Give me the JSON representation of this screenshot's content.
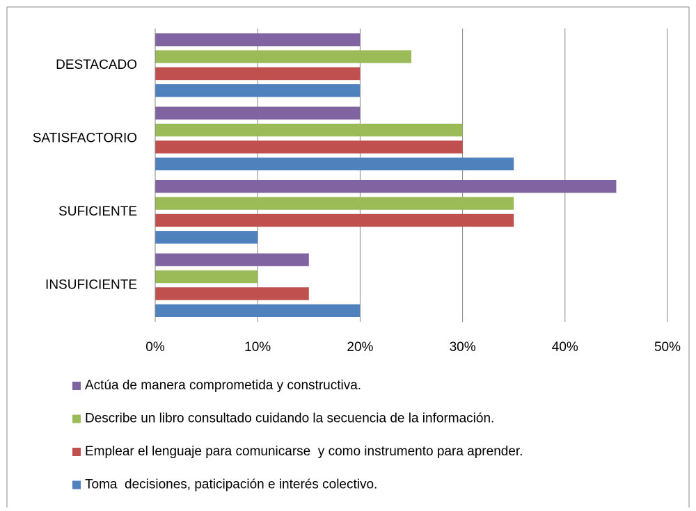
{
  "chart_data": {
    "type": "bar",
    "orientation": "horizontal",
    "categories": [
      "INSUFICIENTE",
      "SUFICIENTE",
      "SATISFACTORIO",
      "DESTACADO"
    ],
    "series": [
      {
        "name": "Toma  decisiones, paticipación e interés colectivo.",
        "color": "#4f81bd",
        "values": [
          20,
          10,
          35,
          20
        ]
      },
      {
        "name": "Emplear el lenguaje para comunicarse  y como instrumento para aprender.",
        "color": "#c0504d",
        "values": [
          15,
          35,
          30,
          20
        ]
      },
      {
        "name": "Describe un libro consultado cuidando la secuencia de la información.",
        "color": "#9bbb59",
        "values": [
          10,
          35,
          30,
          25
        ]
      },
      {
        "name": "Actúa de manera comprometida y constructiva.",
        "color": "#8064a2",
        "values": [
          15,
          45,
          20,
          20
        ]
      }
    ],
    "xlim": [
      0,
      50
    ],
    "xticks": [
      {
        "value": 0,
        "label": "0%"
      },
      {
        "value": 10,
        "label": "10%"
      },
      {
        "value": 20,
        "label": "20%"
      },
      {
        "value": 30,
        "label": "30%"
      },
      {
        "value": 40,
        "label": "40%"
      },
      {
        "value": 50,
        "label": "50%"
      }
    ],
    "grid": true,
    "legend": "bottom"
  }
}
